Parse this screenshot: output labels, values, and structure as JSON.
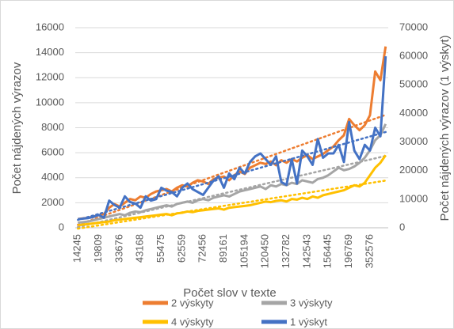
{
  "chart_data": {
    "type": "line",
    "x_label": "Počet slov v texte",
    "y_label": "Počet nájdených výrazov",
    "y2_label": "Počet nájdených výrazov (1 výskyt)",
    "categories": [
      "14245",
      null,
      null,
      null,
      "19809",
      null,
      null,
      null,
      "33676",
      null,
      null,
      null,
      "43168",
      null,
      null,
      null,
      "55475",
      null,
      null,
      null,
      "62559",
      null,
      null,
      null,
      "72456",
      null,
      null,
      null,
      "89161",
      null,
      null,
      null,
      "105194",
      null,
      null,
      null,
      "120450",
      null,
      null,
      null,
      "132782",
      null,
      null,
      null,
      "142543",
      null,
      null,
      null,
      "156445",
      null,
      null,
      null,
      "196769",
      null,
      null,
      null,
      "352576",
      null,
      null,
      null
    ],
    "series": [
      {
        "name": "2 výskyty",
        "color": "#ed7d31",
        "values": [
          700,
          750,
          800,
          900,
          1000,
          1100,
          1600,
          1900,
          1700,
          2000,
          2300,
          2200,
          2500,
          2400,
          2700,
          2900,
          3000,
          3100,
          2900,
          3200,
          3400,
          3300,
          3600,
          3800,
          3700,
          3500,
          3900,
          4000,
          4100,
          3800,
          4200,
          4500,
          4300,
          4800,
          5000,
          5200,
          5100,
          5300,
          5000,
          5400,
          5200,
          5500,
          5300,
          5600,
          5800,
          5500,
          5700,
          5900,
          6200,
          6500,
          7000,
          7400,
          8700,
          8200,
          7800,
          8200,
          9000,
          12500,
          11800,
          14500
        ]
      },
      {
        "name": "3 výskyty",
        "color": "#a5a5a5",
        "values": [
          400,
          450,
          500,
          600,
          700,
          800,
          900,
          1000,
          1100,
          1000,
          1200,
          1300,
          1250,
          1400,
          1500,
          1600,
          1700,
          1800,
          1700,
          1900,
          2000,
          2100,
          2000,
          2200,
          2300,
          2200,
          2400,
          2500,
          2600,
          2500,
          2700,
          2900,
          3000,
          3100,
          3200,
          3300,
          3100,
          3400,
          3300,
          3500,
          3400,
          3600,
          3500,
          3800,
          3700,
          3600,
          3900,
          4000,
          4200,
          4500,
          4800,
          4600,
          4700,
          4900,
          5200,
          5600,
          6200,
          7000,
          7400,
          8300
        ]
      },
      {
        "name": "4 výskyty",
        "color": "#ffc000",
        "values": [
          200,
          250,
          300,
          350,
          400,
          450,
          500,
          600,
          650,
          700,
          750,
          800,
          850,
          900,
          950,
          1000,
          1050,
          1100,
          1000,
          1150,
          1200,
          1300,
          1250,
          1350,
          1400,
          1450,
          1500,
          1550,
          1450,
          1600,
          1650,
          1700,
          1750,
          1800,
          1900,
          2000,
          2100,
          2050,
          2150,
          2200,
          2100,
          2300,
          2250,
          2400,
          2300,
          2500,
          2400,
          2600,
          2700,
          2800,
          2900,
          3000,
          3200,
          3400,
          3300,
          3600,
          4200,
          4800,
          5200,
          5800
        ]
      },
      {
        "name": "1 výskyt",
        "color": "#4472c4",
        "axis": "y2",
        "values": [
          3000,
          3200,
          3400,
          3800,
          4500,
          3500,
          9500,
          8000,
          7000,
          11000,
          9000,
          8500,
          7000,
          11000,
          9500,
          10000,
          14000,
          13000,
          12500,
          11000,
          14000,
          15500,
          13500,
          12500,
          11500,
          14000,
          16500,
          18000,
          14000,
          19000,
          17000,
          21000,
          19000,
          23000,
          25000,
          26000,
          24000,
          22000,
          25000,
          16000,
          15000,
          24000,
          15500,
          27000,
          25000,
          22000,
          31000,
          24500,
          26000,
          26000,
          29000,
          23000,
          37000,
          27000,
          24000,
          29000,
          27000,
          35000,
          32000,
          60000
        ]
      }
    ],
    "ylim": [
      0,
      16000
    ],
    "yticks": [
      0,
      2000,
      4000,
      6000,
      8000,
      10000,
      12000,
      14000,
      16000
    ],
    "y2lim": [
      0,
      70000
    ],
    "y2ticks": [
      0,
      10000,
      20000,
      30000,
      40000,
      50000,
      60000,
      70000
    ],
    "grid": true,
    "trendlines": true,
    "legend": "bottom"
  }
}
